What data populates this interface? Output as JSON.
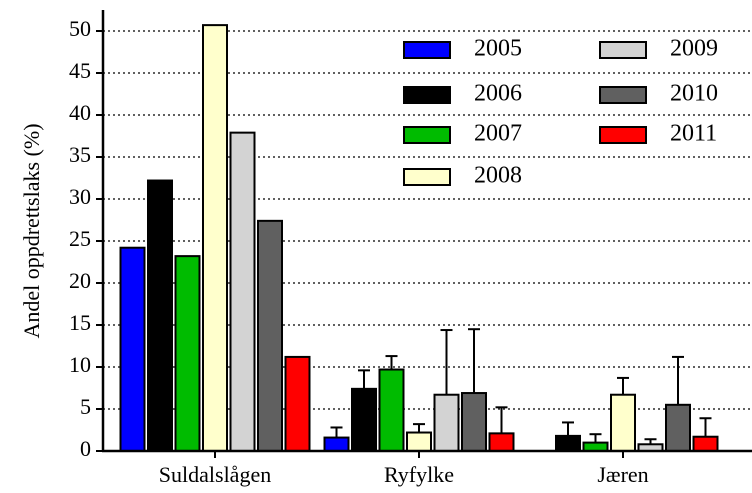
{
  "chart_data": {
    "type": "bar",
    "y_label": "Andel oppdrettslaks (%)",
    "categories": [
      "Suldalslågen",
      "Ryfylke",
      "Jæren"
    ],
    "series": [
      {
        "name": "2005",
        "color": "#0000ff",
        "values": [
          24.2,
          1.6,
          null
        ],
        "errors": [
          null,
          1.2,
          null
        ]
      },
      {
        "name": "2006",
        "color": "#000000",
        "values": [
          32.2,
          7.4,
          1.8
        ],
        "errors": [
          null,
          2.2,
          1.6
        ]
      },
      {
        "name": "2007",
        "color": "#00bb00",
        "values": [
          23.2,
          9.7,
          1.0
        ],
        "errors": [
          null,
          1.6,
          1.0
        ]
      },
      {
        "name": "2008",
        "color": "#ffffcc",
        "values": [
          50.7,
          2.2,
          6.7
        ],
        "errors": [
          null,
          1.0,
          2.0
        ]
      },
      {
        "name": "2009",
        "color": "#d3d3d3",
        "values": [
          37.9,
          6.7,
          0.8
        ],
        "errors": [
          null,
          7.7,
          0.6
        ]
      },
      {
        "name": "2010",
        "color": "#606060",
        "values": [
          27.4,
          6.9,
          5.5
        ],
        "errors": [
          null,
          7.6,
          5.7
        ]
      },
      {
        "name": "2011",
        "color": "#ff0000",
        "values": [
          11.2,
          2.1,
          1.7
        ],
        "errors": [
          null,
          3.1,
          2.2
        ]
      }
    ],
    "ylim": [
      0,
      52.5
    ],
    "yticks": [
      0,
      5,
      10,
      15,
      20,
      25,
      30,
      35,
      40,
      45,
      50
    ],
    "grid": true
  }
}
